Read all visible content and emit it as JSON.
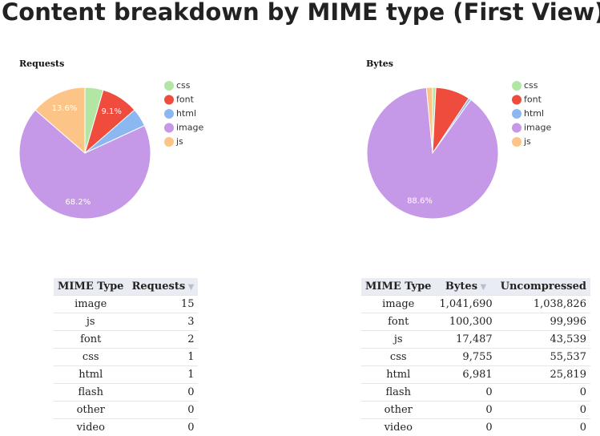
{
  "title": "Content breakdown by MIME type (First View)",
  "chart_data": [
    {
      "type": "pie",
      "title": "Requests",
      "categories": [
        "css",
        "font",
        "html",
        "image",
        "js"
      ],
      "values": [
        4.5,
        9.1,
        4.5,
        68.2,
        13.6
      ],
      "value_labels": [
        null,
        "9.1%",
        null,
        "68.2%",
        "13.6%"
      ],
      "colors": [
        "#b1e6a4",
        "#f04c3e",
        "#8cb8f2",
        "#c598e8",
        "#fdc487"
      ]
    },
    {
      "type": "pie",
      "title": "Bytes",
      "categories": [
        "css",
        "font",
        "html",
        "image",
        "js"
      ],
      "values": [
        0.8,
        8.5,
        0.6,
        88.6,
        1.5
      ],
      "value_labels": [
        null,
        null,
        null,
        "88.6%",
        null
      ],
      "colors": [
        "#b1e6a4",
        "#f04c3e",
        "#8cb8f2",
        "#c598e8",
        "#fdc487"
      ]
    }
  ],
  "tables": [
    {
      "header": [
        "MIME Type",
        "Requests"
      ],
      "rows": [
        [
          "image",
          "15"
        ],
        [
          "js",
          "3"
        ],
        [
          "font",
          "2"
        ],
        [
          "css",
          "1"
        ],
        [
          "html",
          "1"
        ],
        [
          "flash",
          "0"
        ],
        [
          "other",
          "0"
        ],
        [
          "video",
          "0"
        ]
      ]
    },
    {
      "header": [
        "MIME Type",
        "Bytes",
        "Uncompressed"
      ],
      "rows": [
        [
          "image",
          "1,041,690",
          "1,038,826"
        ],
        [
          "font",
          "100,300",
          "99,996"
        ],
        [
          "js",
          "17,487",
          "43,539"
        ],
        [
          "css",
          "9,755",
          "55,537"
        ],
        [
          "html",
          "6,981",
          "25,819"
        ],
        [
          "flash",
          "0",
          "0"
        ],
        [
          "other",
          "0",
          "0"
        ],
        [
          "video",
          "0",
          "0"
        ]
      ]
    }
  ]
}
